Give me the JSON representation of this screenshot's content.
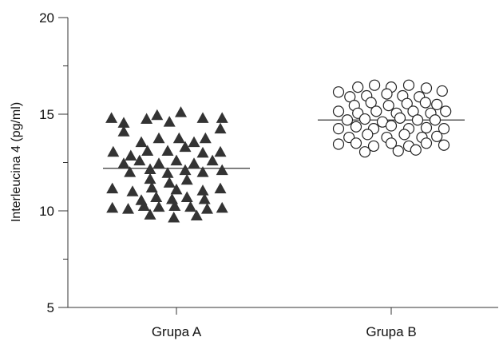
{
  "chart_data": {
    "type": "scatter",
    "title": "",
    "xlabel": "",
    "ylabel": "Interleucina 4 (pg/ml)",
    "ylim": [
      5,
      20
    ],
    "yticks": [
      5,
      10,
      15,
      20
    ],
    "minor_yticks": [
      7.5,
      12.5,
      17.5
    ],
    "categories": [
      "Grupa A",
      "Grupa B"
    ],
    "grid": false,
    "legend": "none",
    "series": [
      {
        "category": "Grupa A",
        "marker": "filled-triangle",
        "color": "#333333",
        "mean": 12.2,
        "points": [
          [
            -0.74,
            14.8
          ],
          [
            -0.6,
            14.55
          ],
          [
            -0.34,
            14.75
          ],
          [
            -0.22,
            14.95
          ],
          [
            -0.08,
            14.6
          ],
          [
            0.05,
            15.1
          ],
          [
            0.3,
            14.8
          ],
          [
            0.52,
            14.8
          ],
          [
            -0.6,
            14.1
          ],
          [
            0.5,
            14.25
          ],
          [
            -0.4,
            13.55
          ],
          [
            -0.2,
            13.75
          ],
          [
            0.03,
            13.75
          ],
          [
            0.2,
            13.55
          ],
          [
            0.33,
            13.75
          ],
          [
            -0.72,
            13.05
          ],
          [
            -0.52,
            12.85
          ],
          [
            -0.33,
            13.1
          ],
          [
            -0.1,
            13.1
          ],
          [
            0.1,
            13.3
          ],
          [
            0.3,
            13.0
          ],
          [
            0.5,
            13.05
          ],
          [
            -0.6,
            12.45
          ],
          [
            -0.42,
            12.6
          ],
          [
            -0.2,
            12.45
          ],
          [
            0.0,
            12.6
          ],
          [
            0.2,
            12.45
          ],
          [
            0.41,
            12.6
          ],
          [
            -0.53,
            12.0
          ],
          [
            -0.3,
            12.15
          ],
          [
            -0.1,
            11.95
          ],
          [
            0.1,
            12.1
          ],
          [
            0.3,
            12.0
          ],
          [
            0.52,
            12.1
          ],
          [
            -0.3,
            11.65
          ],
          [
            -0.08,
            11.45
          ],
          [
            0.12,
            11.6
          ],
          [
            -0.73,
            11.15
          ],
          [
            -0.5,
            11.0
          ],
          [
            -0.28,
            11.2
          ],
          [
            0.0,
            11.1
          ],
          [
            0.3,
            11.05
          ],
          [
            0.5,
            11.15
          ],
          [
            -0.4,
            10.55
          ],
          [
            -0.23,
            10.7
          ],
          [
            -0.05,
            10.6
          ],
          [
            0.12,
            10.7
          ],
          [
            0.32,
            10.6
          ],
          [
            -0.73,
            10.15
          ],
          [
            -0.55,
            10.1
          ],
          [
            -0.37,
            10.25
          ],
          [
            -0.2,
            10.2
          ],
          [
            -0.02,
            10.25
          ],
          [
            0.16,
            10.2
          ],
          [
            0.35,
            10.1
          ],
          [
            0.52,
            10.15
          ],
          [
            -0.3,
            9.8
          ],
          [
            -0.03,
            9.65
          ],
          [
            0.23,
            9.75
          ]
        ]
      },
      {
        "category": "Grupa B",
        "marker": "open-circle",
        "color": "#222222",
        "mean": 14.7,
        "points": [
          [
            -0.38,
            16.4
          ],
          [
            -0.19,
            16.5
          ],
          [
            0.0,
            16.4
          ],
          [
            0.2,
            16.5
          ],
          [
            0.4,
            16.35
          ],
          [
            -0.6,
            16.15
          ],
          [
            0.58,
            16.2
          ],
          [
            -0.47,
            15.9
          ],
          [
            -0.28,
            15.95
          ],
          [
            -0.05,
            16.05
          ],
          [
            0.13,
            15.95
          ],
          [
            0.32,
            15.9
          ],
          [
            -0.42,
            15.45
          ],
          [
            -0.23,
            15.6
          ],
          [
            -0.03,
            15.45
          ],
          [
            0.18,
            15.55
          ],
          [
            0.39,
            15.6
          ],
          [
            0.52,
            15.5
          ],
          [
            -0.6,
            15.15
          ],
          [
            -0.38,
            15.05
          ],
          [
            -0.17,
            15.15
          ],
          [
            0.06,
            15.05
          ],
          [
            0.25,
            15.15
          ],
          [
            0.45,
            15.05
          ],
          [
            0.62,
            15.15
          ],
          [
            -0.5,
            14.7
          ],
          [
            -0.3,
            14.75
          ],
          [
            -0.1,
            14.6
          ],
          [
            0.1,
            14.8
          ],
          [
            0.3,
            14.7
          ],
          [
            0.5,
            14.7
          ],
          [
            -0.6,
            14.25
          ],
          [
            -0.4,
            14.35
          ],
          [
            -0.2,
            14.25
          ],
          [
            0.0,
            14.4
          ],
          [
            0.2,
            14.25
          ],
          [
            0.4,
            14.3
          ],
          [
            0.6,
            14.25
          ],
          [
            -0.48,
            13.8
          ],
          [
            -0.27,
            13.95
          ],
          [
            -0.05,
            13.8
          ],
          [
            0.15,
            13.95
          ],
          [
            0.35,
            13.8
          ],
          [
            0.52,
            13.85
          ],
          [
            -0.6,
            13.45
          ],
          [
            -0.4,
            13.5
          ],
          [
            -0.2,
            13.35
          ],
          [
            0.0,
            13.5
          ],
          [
            0.2,
            13.35
          ],
          [
            0.4,
            13.5
          ],
          [
            0.6,
            13.4
          ],
          [
            -0.3,
            13.05
          ],
          [
            0.08,
            13.1
          ],
          [
            0.28,
            13.15
          ]
        ]
      }
    ]
  }
}
